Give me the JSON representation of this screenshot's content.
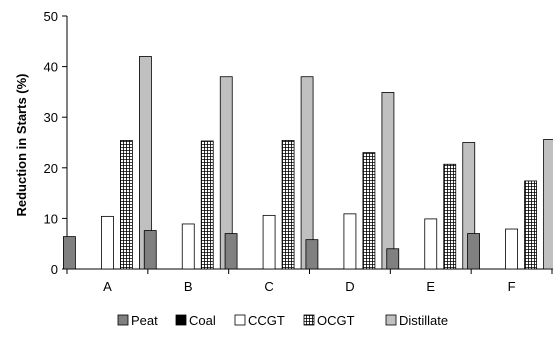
{
  "chart_data": {
    "type": "bar",
    "title": "",
    "xlabel": "",
    "ylabel": "Reduction in Starts (%)",
    "ylim": [
      0,
      50
    ],
    "yticks": [
      0,
      10,
      20,
      30,
      40,
      50
    ],
    "grid": false,
    "legend_position": "bottom",
    "categories": [
      "A",
      "B",
      "C",
      "D",
      "E",
      "F"
    ],
    "series": [
      {
        "name": "Peat",
        "color": "#808080",
        "pattern": "solid",
        "values": [
          6.4,
          7.6,
          7.0,
          5.8,
          4.0,
          7.0
        ]
      },
      {
        "name": "Coal",
        "color": "#000000",
        "pattern": "solid",
        "values": [
          0,
          0,
          0,
          0,
          0,
          0
        ]
      },
      {
        "name": "CCGT",
        "color": "#ffffff",
        "pattern": "solid",
        "values": [
          10.4,
          8.9,
          10.6,
          10.9,
          9.9,
          7.9
        ]
      },
      {
        "name": "OCGT",
        "color": "#ffffff",
        "pattern": "grid",
        "values": [
          25.4,
          25.3,
          25.4,
          23.0,
          20.7,
          17.4
        ]
      },
      {
        "name": "Distillate",
        "color": "#c0c0c0",
        "pattern": "solid",
        "values": [
          42.0,
          38.0,
          38.0,
          34.9,
          25.0,
          25.6
        ]
      }
    ]
  }
}
